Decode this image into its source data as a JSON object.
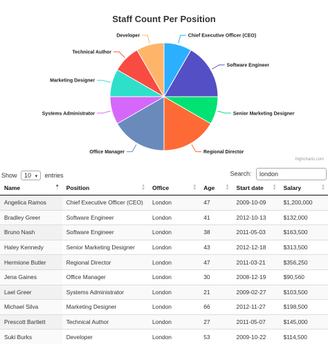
{
  "chart_data": {
    "type": "pie",
    "title": "Staff Count Per Position",
    "slices": [
      {
        "label": "Chief Executive Officer (CEO)",
        "value": 1,
        "color": "#2caffe"
      },
      {
        "label": "Software Engineer",
        "value": 2,
        "color": "#544fc5"
      },
      {
        "label": "Senior Marketing Designer",
        "value": 1,
        "color": "#00e272"
      },
      {
        "label": "Regional Director",
        "value": 2,
        "color": "#fe6a35"
      },
      {
        "label": "Office Manager",
        "value": 2,
        "color": "#6b8abc"
      },
      {
        "label": "Systems Administrator",
        "value": 1,
        "color": "#d568fb"
      },
      {
        "label": "Marketing Designer",
        "value": 1,
        "color": "#2ee0ca"
      },
      {
        "label": "Technical Author",
        "value": 1,
        "color": "#fa4b42"
      },
      {
        "label": "Developer",
        "value": 1,
        "color": "#feb56a"
      }
    ]
  },
  "credits": "Highcharts.com",
  "controls": {
    "show_label": "Show",
    "entries_value": "10",
    "entries_label": "entries",
    "search_label": "Search:",
    "search_value": "london"
  },
  "table": {
    "columns": [
      "Name",
      "Position",
      "Office",
      "Age",
      "Start date",
      "Salary"
    ],
    "rows": [
      [
        "Angelica Ramos",
        "Chief Executive Officer (CEO)",
        "London",
        "47",
        "2009-10-09",
        "$1,200,000"
      ],
      [
        "Bradley Greer",
        "Software Engineer",
        "London",
        "41",
        "2012-10-13",
        "$132,000"
      ],
      [
        "Bruno Nash",
        "Software Engineer",
        "London",
        "38",
        "2011-05-03",
        "$163,500"
      ],
      [
        "Haley Kennedy",
        "Senior Marketing Designer",
        "London",
        "43",
        "2012-12-18",
        "$313,500"
      ],
      [
        "Hermione Butler",
        "Regional Director",
        "London",
        "47",
        "2011-03-21",
        "$356,250"
      ],
      [
        "Jena Gaines",
        "Office Manager",
        "London",
        "30",
        "2008-12-19",
        "$90,560"
      ],
      [
        "Lael Greer",
        "Systems Administrator",
        "London",
        "21",
        "2009-02-27",
        "$103,500"
      ],
      [
        "Michael Silva",
        "Marketing Designer",
        "London",
        "66",
        "2012-11-27",
        "$198,500"
      ],
      [
        "Prescott Bartlett",
        "Technical Author",
        "London",
        "27",
        "2011-05-07",
        "$145,000"
      ],
      [
        "Suki Burks",
        "Developer",
        "London",
        "53",
        "2009-10-22",
        "$114,500"
      ]
    ]
  }
}
